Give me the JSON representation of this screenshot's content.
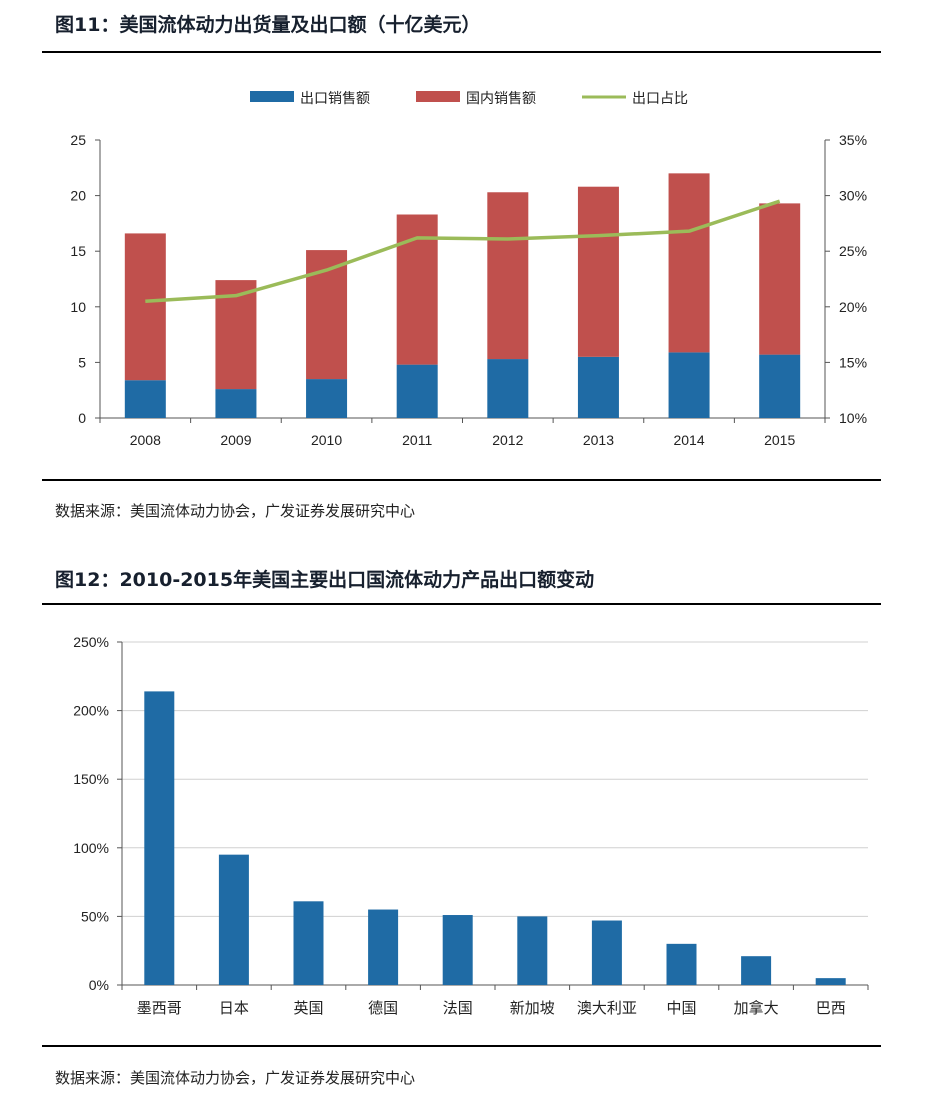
{
  "fig11": {
    "title": "图11：美国流体动力出货量及出口额（十亿美元）",
    "source": "数据来源：美国流体动力协会，广发证券发展研究中心"
  },
  "fig12": {
    "title": "图12：2010-2015年美国主要出口国流体动力产品出口额变动",
    "source": "数据来源：美国流体动力协会，广发证券发展研究中心"
  },
  "colors": {
    "export": "#1f6ba5",
    "domestic": "#c0504d",
    "ratio": "#9bbb59",
    "bar12": "#1f6ba5",
    "grid": "#d0d0d0"
  },
  "chart_data": [
    {
      "type": "bar",
      "stacked": true,
      "categories": [
        "2008",
        "2009",
        "2010",
        "2011",
        "2012",
        "2013",
        "2014",
        "2015"
      ],
      "series": [
        {
          "name": "出口销售额",
          "values": [
            3.4,
            2.6,
            3.5,
            4.8,
            5.3,
            5.5,
            5.9,
            5.7
          ]
        },
        {
          "name": "国内销售额",
          "values": [
            13.2,
            9.8,
            11.6,
            13.5,
            15.0,
            15.3,
            16.1,
            13.6
          ]
        },
        {
          "name": "出口占比",
          "type": "line",
          "axis": "right",
          "values": [
            20.5,
            21.0,
            23.3,
            26.2,
            26.1,
            26.4,
            26.8,
            29.5
          ]
        }
      ],
      "ylim": [
        0,
        25
      ],
      "yticks": [
        "0",
        "5",
        "10",
        "15",
        "20",
        "25"
      ],
      "y2lim": [
        10,
        35
      ],
      "y2ticks": [
        "10%",
        "15%",
        "20%",
        "25%",
        "30%",
        "35%"
      ],
      "legend": "top",
      "grid": false
    },
    {
      "type": "bar",
      "categories": [
        "墨西哥",
        "日本",
        "英国",
        "德国",
        "法国",
        "新加坡",
        "澳大利亚",
        "中国",
        "加拿大",
        "巴西"
      ],
      "values": [
        214,
        95,
        61,
        55,
        51,
        50,
        47,
        30,
        21,
        5
      ],
      "ylim": [
        0,
        250
      ],
      "yticks": [
        "0%",
        "50%",
        "100%",
        "150%",
        "200%",
        "250%"
      ],
      "grid": true
    }
  ]
}
